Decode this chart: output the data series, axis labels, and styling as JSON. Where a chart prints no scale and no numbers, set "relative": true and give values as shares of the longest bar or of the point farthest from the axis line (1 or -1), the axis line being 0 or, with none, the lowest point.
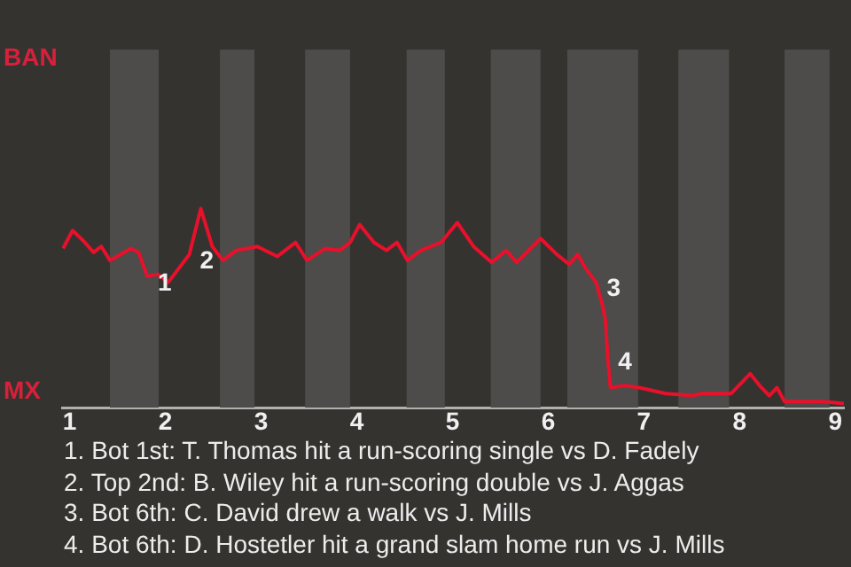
{
  "chart_data": {
    "type": "line",
    "relative": true,
    "x": [
      0.93,
      1.03,
      1.14,
      1.25,
      1.33,
      1.42,
      1.53,
      1.64,
      1.72,
      1.81,
      1.92,
      2.03,
      2.25,
      2.37,
      2.49,
      2.6,
      2.74,
      2.96,
      3.17,
      3.36,
      3.48,
      3.67,
      3.82,
      3.93,
      4.03,
      4.18,
      4.31,
      4.42,
      4.53,
      4.67,
      4.88,
      5.05,
      5.22,
      5.41,
      5.56,
      5.67,
      5.92,
      6.09,
      6.22,
      6.31,
      6.39,
      6.5,
      6.57,
      6.6,
      6.62,
      6.65,
      6.8,
      6.95,
      7.23,
      7.51,
      7.6,
      7.91,
      8.11,
      8.21,
      8.31,
      8.39,
      8.47,
      8.87,
      9.09
    ],
    "series": [
      {
        "color": "#e8102a",
        "values": [
          0.8,
          0.89,
          0.84,
          0.78,
          0.81,
          0.74,
          0.77,
          0.8,
          0.78,
          0.66,
          0.67,
          0.63,
          0.77,
          1,
          0.81,
          0.74,
          0.79,
          0.81,
          0.76,
          0.83,
          0.74,
          0.8,
          0.79,
          0.83,
          0.92,
          0.83,
          0.79,
          0.83,
          0.74,
          0.79,
          0.83,
          0.93,
          0.81,
          0.73,
          0.79,
          0.73,
          0.85,
          0.77,
          0.72,
          0.77,
          0.7,
          0.63,
          0.51,
          0.43,
          0.26,
          0.1,
          0.11,
          0.1,
          0.07,
          0.06,
          0.07,
          0.07,
          0.17,
          0.11,
          0.06,
          0.1,
          0.03,
          0.03,
          0.02
        ]
      }
    ],
    "xlim": [
      0.92,
      9.09
    ],
    "xticks": [
      1,
      2,
      3,
      4,
      5,
      6,
      7,
      8,
      9
    ],
    "legend": false,
    "marker": "none",
    "line_style": "solid",
    "bands": [
      {
        "axis": "x",
        "from": 1.42,
        "to": 1.93,
        "color": "#4d4c4a"
      },
      {
        "axis": "x",
        "from": 2.57,
        "to": 2.93,
        "color": "#4d4c4a"
      },
      {
        "axis": "x",
        "from": 3.46,
        "to": 3.93,
        "color": "#4d4c4a"
      },
      {
        "axis": "x",
        "from": 4.52,
        "to": 4.92,
        "color": "#4d4c4a"
      },
      {
        "axis": "x",
        "from": 5.4,
        "to": 5.92,
        "color": "#4d4c4a"
      },
      {
        "axis": "x",
        "from": 6.2,
        "to": 6.94,
        "color": "#4d4c4a"
      },
      {
        "axis": "x",
        "from": 7.36,
        "to": 7.89,
        "color": "#4d4c4a"
      },
      {
        "axis": "x",
        "from": 8.47,
        "to": 8.94,
        "color": "#4d4c4a"
      }
    ],
    "annotations": [
      "BAN",
      "MX",
      {
        "text": "1",
        "x": 1.81,
        "y": 0.66
      },
      {
        "text": "2",
        "x": 2.25,
        "y": 0.77
      },
      {
        "text": "3",
        "x": 6.5,
        "y": 0.63
      },
      {
        "text": "4",
        "x": 6.62,
        "y": 0.26
      },
      "1. Bot 1st: T. Thomas hit a run-scoring single vs D. Fadely",
      "2. Top 2nd: B. Wiley hit a run-scoring double vs J. Aggas",
      "3. Bot 6th: C. David drew a walk vs J. Mills",
      "4. Bot 6th: D. Hostetler hit a grand slam home run vs J. Mills"
    ]
  }
}
